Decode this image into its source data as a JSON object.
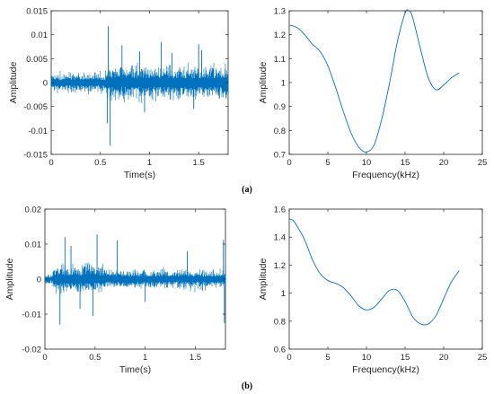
{
  "figure": {
    "panel_labels": [
      "(a)",
      "(b)"
    ]
  },
  "chart_data": [
    {
      "id": "a-time",
      "type": "line",
      "xlabel": "Time(s)",
      "ylabel": "Amplitude",
      "xlim": [
        0,
        1.8
      ],
      "ylim": [
        -0.015,
        0.015
      ],
      "xticks": [
        0,
        0.5,
        1,
        1.5
      ],
      "xtick_labels": [
        "0",
        "0.5",
        "1",
        "1.5"
      ],
      "yticks": [
        -0.015,
        -0.01,
        -0.005,
        0,
        0.005,
        0.01,
        0.015
      ],
      "ytick_labels": [
        "-0.015",
        "-0.01",
        "-0.005",
        "0",
        "0.005",
        "0.01",
        "0.015"
      ],
      "grid": false,
      "color": "#0072BD",
      "signal": {
        "duration": 1.8,
        "segments": [
          {
            "t_start": 0.0,
            "t_end": 0.55,
            "envelope": 0.002
          },
          {
            "t_start": 0.55,
            "t_end": 1.8,
            "envelope": 0.0035
          }
        ],
        "spikes": [
          {
            "t": 0.58,
            "value": 0.0118
          },
          {
            "t": 0.6,
            "value": -0.0132
          },
          {
            "t": 0.57,
            "value": -0.0085
          },
          {
            "t": 0.72,
            "value": 0.0078
          },
          {
            "t": 0.9,
            "value": 0.0065
          },
          {
            "t": 1.12,
            "value": 0.0085
          },
          {
            "t": 1.23,
            "value": 0.0062
          },
          {
            "t": 1.5,
            "value": 0.008
          },
          {
            "t": 1.53,
            "value": 0.0068
          },
          {
            "t": 1.45,
            "value": -0.0055
          },
          {
            "t": 0.95,
            "value": -0.0062
          }
        ]
      }
    },
    {
      "id": "a-freq",
      "type": "line",
      "xlabel": "Frequency(kHz)",
      "ylabel": "Amplitude",
      "xlim": [
        0,
        25
      ],
      "ylim": [
        0.7,
        1.3
      ],
      "xticks": [
        0,
        5,
        10,
        15,
        20,
        25
      ],
      "xtick_labels": [
        "0",
        "5",
        "10",
        "15",
        "20",
        "25"
      ],
      "yticks": [
        0.7,
        0.8,
        0.9,
        1,
        1.1,
        1.2,
        1.3
      ],
      "ytick_labels": [
        "0.7",
        "0.8",
        "0.9",
        "1",
        "1.1",
        "1.2",
        "1.3"
      ],
      "grid": false,
      "color": "#0072BD",
      "x": [
        0,
        1,
        2,
        3,
        4,
        5,
        6,
        7,
        8,
        9,
        10,
        11,
        12,
        13,
        14,
        15,
        15.5,
        16,
        17,
        18,
        19,
        20,
        21,
        22
      ],
      "y": [
        1.24,
        1.23,
        1.2,
        1.16,
        1.13,
        1.07,
        0.98,
        0.88,
        0.79,
        0.73,
        0.71,
        0.74,
        0.85,
        1.0,
        1.17,
        1.29,
        1.3,
        1.27,
        1.14,
        1.02,
        0.97,
        0.99,
        1.02,
        1.04
      ]
    },
    {
      "id": "b-time",
      "type": "line",
      "xlabel": "Time(s)",
      "ylabel": "Amplitude",
      "xlim": [
        0,
        1.8
      ],
      "ylim": [
        -0.02,
        0.02
      ],
      "xticks": [
        0,
        0.5,
        1,
        1.5
      ],
      "xtick_labels": [
        "0",
        "0.5",
        "1",
        "1.5"
      ],
      "yticks": [
        -0.02,
        -0.01,
        0,
        0.01,
        0.02
      ],
      "ytick_labels": [
        "-0.02",
        "-0.01",
        "0",
        "0.01",
        "0.02"
      ],
      "grid": false,
      "color": "#0072BD",
      "signal": {
        "duration": 1.8,
        "segments": [
          {
            "t_start": 0.0,
            "t_end": 0.08,
            "envelope": 0.0015
          },
          {
            "t_start": 0.08,
            "t_end": 0.6,
            "envelope": 0.004
          },
          {
            "t_start": 0.6,
            "t_end": 1.8,
            "envelope": 0.0028
          }
        ],
        "spikes": [
          {
            "t": 0.2,
            "value": 0.012
          },
          {
            "t": 0.15,
            "value": -0.013
          },
          {
            "t": 0.26,
            "value": 0.0095
          },
          {
            "t": 0.52,
            "value": 0.0128
          },
          {
            "t": 0.48,
            "value": -0.0105
          },
          {
            "t": 0.72,
            "value": 0.011
          },
          {
            "t": 0.35,
            "value": -0.0085
          },
          {
            "t": 1.42,
            "value": 0.008
          },
          {
            "t": 1.78,
            "value": 0.0112
          },
          {
            "t": 1.79,
            "value": -0.0125
          },
          {
            "t": 1.0,
            "value": -0.0065
          }
        ]
      }
    },
    {
      "id": "b-freq",
      "type": "line",
      "xlabel": "Frequency(kHz)",
      "ylabel": "Amplitude",
      "xlim": [
        0,
        25
      ],
      "ylim": [
        0.6,
        1.6
      ],
      "xticks": [
        0,
        5,
        10,
        15,
        20,
        25
      ],
      "xtick_labels": [
        "0",
        "5",
        "10",
        "15",
        "20",
        "25"
      ],
      "yticks": [
        0.6,
        0.8,
        1,
        1.2,
        1.4,
        1.6
      ],
      "ytick_labels": [
        "0.6",
        "0.8",
        "1",
        "1.2",
        "1.4",
        "1.6"
      ],
      "grid": false,
      "color": "#0072BD",
      "x": [
        0,
        0.5,
        1,
        2,
        3,
        4,
        5,
        6,
        7,
        8,
        9,
        10,
        11,
        12,
        13,
        14,
        15,
        16,
        17,
        18,
        19,
        20,
        21,
        22
      ],
      "y": [
        1.53,
        1.52,
        1.48,
        1.38,
        1.24,
        1.14,
        1.09,
        1.07,
        1.04,
        0.98,
        0.91,
        0.88,
        0.9,
        0.96,
        1.02,
        1.02,
        0.94,
        0.83,
        0.78,
        0.78,
        0.84,
        0.96,
        1.08,
        1.16
      ]
    }
  ]
}
